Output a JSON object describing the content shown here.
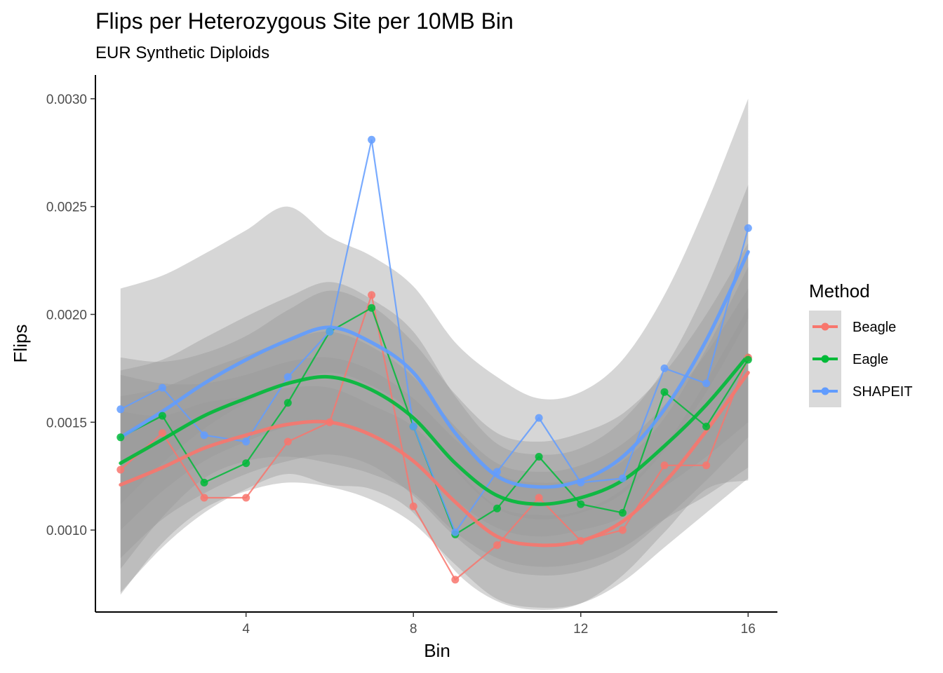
{
  "chart_data": {
    "type": "line",
    "title": "Flips per Heterozygous Site per 10MB Bin",
    "subtitle": "EUR Synthetic Diploids",
    "xlabel": "Bin",
    "ylabel": "Flips",
    "xlim": [
      0.4,
      16.7
    ],
    "ylim": [
      0.00062,
      0.00311
    ],
    "x_ticks": [
      4,
      8,
      12,
      16
    ],
    "x_tick_labels": [
      "4",
      "8",
      "12",
      "16"
    ],
    "y_ticks": [
      0.001,
      0.0015,
      0.002,
      0.0025,
      0.003
    ],
    "y_tick_labels": [
      "0.0010",
      "0.0015",
      "0.0020",
      "0.0025",
      "0.0030"
    ],
    "grid": false,
    "legend": {
      "title": "Method",
      "position": "right"
    },
    "x": [
      1,
      2,
      3,
      4,
      5,
      6,
      7,
      8,
      9,
      10,
      11,
      12,
      13,
      14,
      15,
      16
    ],
    "series": [
      {
        "name": "Beagle",
        "color": "#F8766D",
        "values": [
          0.00128,
          0.00145,
          0.00115,
          0.00115,
          0.00141,
          0.0015,
          0.00209,
          0.00111,
          0.00077,
          0.00093,
          0.00115,
          0.00095,
          0.001,
          0.0013,
          0.0013,
          0.0018
        ],
        "smooth": [
          0.00121,
          0.00129,
          0.00138,
          0.00144,
          0.00149,
          0.0015,
          0.00144,
          0.00132,
          0.00113,
          0.00097,
          0.00093,
          0.00095,
          0.00104,
          0.00122,
          0.00146,
          0.00173
        ],
        "band_inner": [
          [
            0.00087,
            0.00155
          ],
          [
            0.00105,
            0.00153
          ],
          [
            0.00117,
            0.00159
          ],
          [
            0.00126,
            0.00162
          ],
          [
            0.00132,
            0.00166
          ],
          [
            0.00135,
            0.00166
          ],
          [
            0.0013,
            0.00158
          ],
          [
            0.00116,
            0.00148
          ],
          [
            0.00097,
            0.00129
          ],
          [
            0.00083,
            0.00111
          ],
          [
            0.00079,
            0.00107
          ],
          [
            0.00081,
            0.00109
          ],
          [
            0.00089,
            0.00119
          ],
          [
            0.00105,
            0.00139
          ],
          [
            0.00123,
            0.00169
          ],
          [
            0.00143,
            0.00203
          ]
        ],
        "band_outer": [
          [
            0.0007,
            0.00172
          ],
          [
            0.00094,
            0.00168
          ],
          [
            0.0011,
            0.00168
          ],
          [
            0.00118,
            0.00172
          ],
          [
            0.00122,
            0.00178
          ],
          [
            0.0012,
            0.0018
          ],
          [
            0.00114,
            0.00174
          ],
          [
            0.00103,
            0.00161
          ],
          [
            0.00084,
            0.00142
          ],
          [
            0.00068,
            0.00126
          ],
          [
            0.00064,
            0.00122
          ],
          [
            0.00066,
            0.00124
          ],
          [
            0.00076,
            0.00132
          ],
          [
            0.00092,
            0.00152
          ],
          [
            0.00108,
            0.00184
          ],
          [
            0.00124,
            0.00222
          ]
        ]
      },
      {
        "name": "Eagle",
        "color": "#00BA38",
        "values": [
          0.00143,
          0.00153,
          0.00122,
          0.00131,
          0.00159,
          0.00192,
          0.00203,
          0.00148,
          0.00098,
          0.0011,
          0.00134,
          0.00112,
          0.00108,
          0.00164,
          0.00148,
          0.00179
        ],
        "smooth": [
          0.00131,
          0.00142,
          0.00153,
          0.00161,
          0.00168,
          0.00171,
          0.00165,
          0.00152,
          0.00131,
          0.00116,
          0.00112,
          0.00115,
          0.00123,
          0.00139,
          0.00158,
          0.00181
        ],
        "band_inner": [
          [
            0.001,
            0.00162
          ],
          [
            0.00118,
            0.00166
          ],
          [
            0.00132,
            0.00174
          ],
          [
            0.00141,
            0.00181
          ],
          [
            0.00148,
            0.00188
          ],
          [
            0.0015,
            0.00192
          ],
          [
            0.00145,
            0.00185
          ],
          [
            0.00133,
            0.00171
          ],
          [
            0.00114,
            0.00148
          ],
          [
            0.00101,
            0.00131
          ],
          [
            0.00097,
            0.00127
          ],
          [
            0.001,
            0.0013
          ],
          [
            0.00106,
            0.0014
          ],
          [
            0.0012,
            0.00158
          ],
          [
            0.00134,
            0.00182
          ],
          [
            0.0015,
            0.00212
          ]
        ],
        "band_outer": [
          [
            0.00082,
            0.0018
          ],
          [
            0.00106,
            0.00178
          ],
          [
            0.00124,
            0.00182
          ],
          [
            0.00132,
            0.0019
          ],
          [
            0.00134,
            0.00202
          ],
          [
            0.00131,
            0.00211
          ],
          [
            0.00126,
            0.00204
          ],
          [
            0.00117,
            0.00187
          ],
          [
            0.00099,
            0.00163
          ],
          [
            0.00087,
            0.00145
          ],
          [
            0.00083,
            0.00141
          ],
          [
            0.00085,
            0.00145
          ],
          [
            0.00092,
            0.00154
          ],
          [
            0.00105,
            0.00173
          ],
          [
            0.00116,
            0.002
          ],
          [
            0.00129,
            0.00233
          ]
        ]
      },
      {
        "name": "SHAPEIT",
        "color": "#619CFF",
        "values": [
          0.00156,
          0.00166,
          0.00144,
          0.00141,
          0.00171,
          0.00192,
          0.00281,
          0.00148,
          0.00099,
          0.00127,
          0.00152,
          0.00122,
          0.00124,
          0.00175,
          0.00168,
          0.0024
        ],
        "smooth": [
          0.00143,
          0.00155,
          0.00168,
          0.00179,
          0.00188,
          0.00194,
          0.00187,
          0.00173,
          0.00145,
          0.00125,
          0.0012,
          0.00123,
          0.00134,
          0.00156,
          0.00188,
          0.00229
        ],
        "band_inner": [
          [
            0.00112,
            0.00174
          ],
          [
            0.00131,
            0.00179
          ],
          [
            0.00147,
            0.00189
          ],
          [
            0.00159,
            0.00199
          ],
          [
            0.00168,
            0.00208
          ],
          [
            0.00173,
            0.00215
          ],
          [
            0.00167,
            0.00207
          ],
          [
            0.00154,
            0.00192
          ],
          [
            0.00128,
            0.00162
          ],
          [
            0.0011,
            0.0014
          ],
          [
            0.00105,
            0.00135
          ],
          [
            0.00108,
            0.00138
          ],
          [
            0.00117,
            0.00151
          ],
          [
            0.00137,
            0.00175
          ],
          [
            0.00164,
            0.00212
          ],
          [
            0.00198,
            0.0026
          ]
        ],
        "band_outer": [
          [
            0.00071,
            0.00212
          ],
          [
            0.00092,
            0.00218
          ],
          [
            0.00108,
            0.00228
          ],
          [
            0.00119,
            0.00239
          ],
          [
            0.00126,
            0.0025
          ],
          [
            0.00121,
            0.00236
          ],
          [
            0.00119,
            0.00227
          ],
          [
            0.00108,
            0.00213
          ],
          [
            0.00081,
            0.00187
          ],
          [
            0.00067,
            0.00171
          ],
          [
            0.00063,
            0.00161
          ],
          [
            0.00066,
            0.00164
          ],
          [
            0.00079,
            0.00179
          ],
          [
            0.00099,
            0.00209
          ],
          [
            0.00119,
            0.00251
          ],
          [
            0.00123,
            0.003
          ]
        ]
      }
    ]
  }
}
